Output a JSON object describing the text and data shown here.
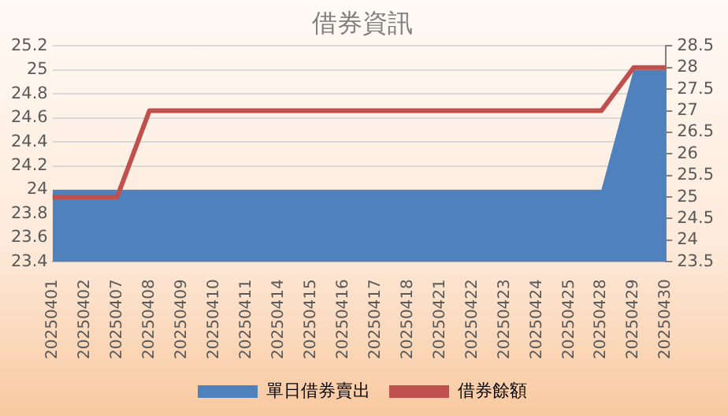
{
  "chart_data": {
    "type": "area",
    "title": "借券資訊",
    "categories": [
      "20250401",
      "20250402",
      "20250407",
      "20250408",
      "20250409",
      "20250410",
      "20250411",
      "20250414",
      "20250415",
      "20250416",
      "20250417",
      "20250418",
      "20250421",
      "20250422",
      "20250423",
      "20250424",
      "20250425",
      "20250428",
      "20250429",
      "20250430"
    ],
    "series": [
      {
        "name": "單日借券賣出",
        "color": "#4f81bd",
        "values": [
          24,
          24,
          24,
          24,
          24,
          24,
          24,
          24,
          24,
          24,
          24,
          24,
          24,
          24,
          24,
          24,
          24,
          24,
          25,
          25
        ]
      },
      {
        "name": "借券餘額",
        "type": "line",
        "axis": "y2",
        "color": "#c0504d",
        "values": [
          25,
          25,
          25,
          27,
          27,
          27,
          27,
          27,
          27,
          27,
          27,
          27,
          27,
          27,
          27,
          27,
          27,
          27,
          28,
          28
        ]
      }
    ],
    "ylim": [
      23.4,
      25.2
    ],
    "yticks": [
      23.4,
      23.6,
      23.8,
      24,
      24.2,
      24.4,
      24.6,
      24.8,
      25,
      25.2
    ],
    "y2lim": [
      23.5,
      28.5
    ],
    "y2ticks": [
      23.5,
      24,
      24.5,
      25,
      25.5,
      26,
      26.5,
      27,
      27.5,
      28,
      28.5
    ],
    "grid": "y",
    "legend": "bottom",
    "marker": "none",
    "line_style": "solid"
  }
}
